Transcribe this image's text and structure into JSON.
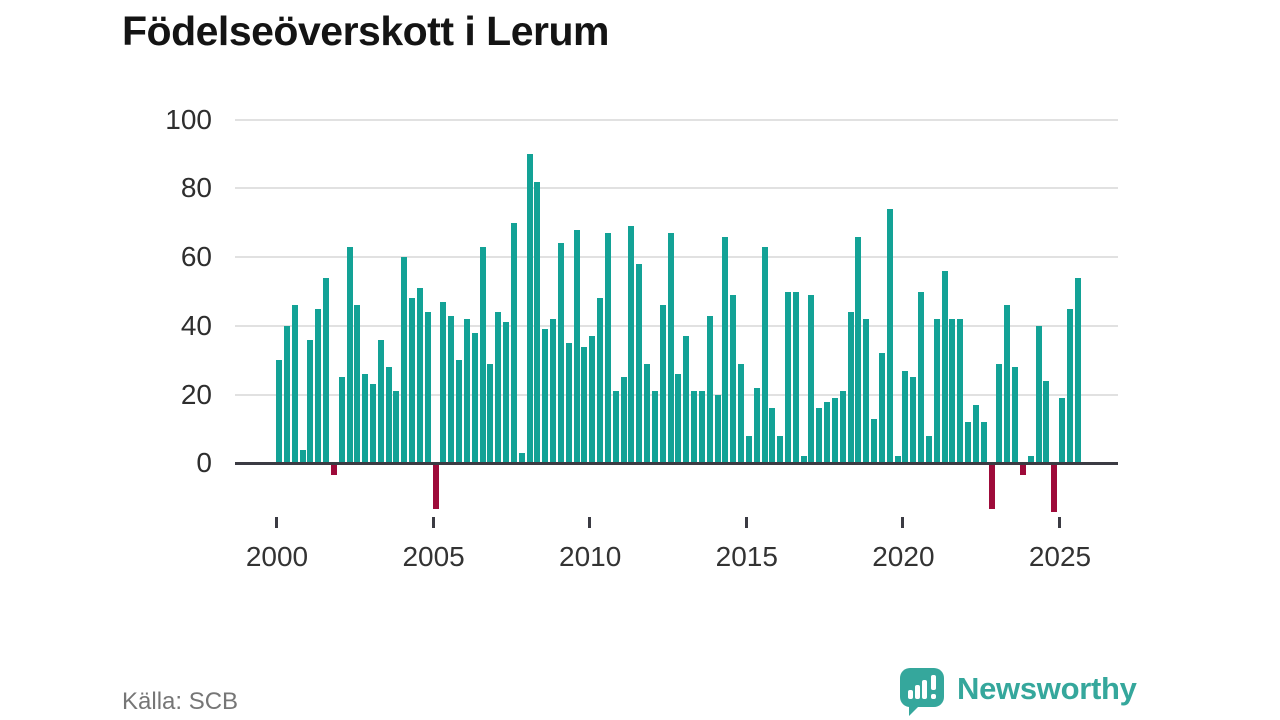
{
  "title": "Födelseöverskott i Lerum",
  "source": "Källa: SCB",
  "logo": {
    "text": "Newsworthy",
    "color": "#35a79c"
  },
  "chart_data": {
    "type": "bar",
    "title": "Födelseöverskott i Lerum",
    "frequency": "quarterly",
    "start_year": 2000,
    "start_quarter": 1,
    "end_year": 2025,
    "end_quarter": 3,
    "x_tick_years": [
      2000,
      2005,
      2010,
      2015,
      2020,
      2025
    ],
    "x_tick_labels": [
      "2000",
      "2005",
      "2010",
      "2015",
      "2020",
      "2025"
    ],
    "yticks": [
      0,
      20,
      40,
      60,
      80,
      100
    ],
    "ytick_labels": [
      "0",
      "20",
      "40",
      "60",
      "80",
      "100"
    ],
    "ylim": [
      -20,
      100
    ],
    "grid": "horizontal-only",
    "legend": "none",
    "positive_color": "#13a296",
    "negative_color": "#9e0b3a",
    "values": [
      30,
      40,
      46,
      4,
      36,
      45,
      54,
      -3,
      25,
      63,
      46,
      26,
      23,
      36,
      28,
      21,
      60,
      48,
      51,
      44,
      -13,
      47,
      43,
      30,
      42,
      38,
      63,
      29,
      44,
      41,
      70,
      3,
      90,
      82,
      39,
      42,
      64,
      35,
      68,
      34,
      37,
      48,
      67,
      21,
      25,
      69,
      58,
      29,
      21,
      46,
      67,
      26,
      37,
      21,
      21,
      43,
      20,
      66,
      49,
      29,
      8,
      22,
      63,
      16,
      8,
      50,
      50,
      2,
      49,
      16,
      18,
      19,
      21,
      44,
      66,
      42,
      13,
      32,
      74,
      2,
      27,
      25,
      50,
      8,
      42,
      56,
      42,
      42,
      12,
      17,
      12,
      -13,
      29,
      46,
      28,
      -3,
      2,
      40,
      24,
      -14,
      19,
      45,
      54
    ]
  }
}
